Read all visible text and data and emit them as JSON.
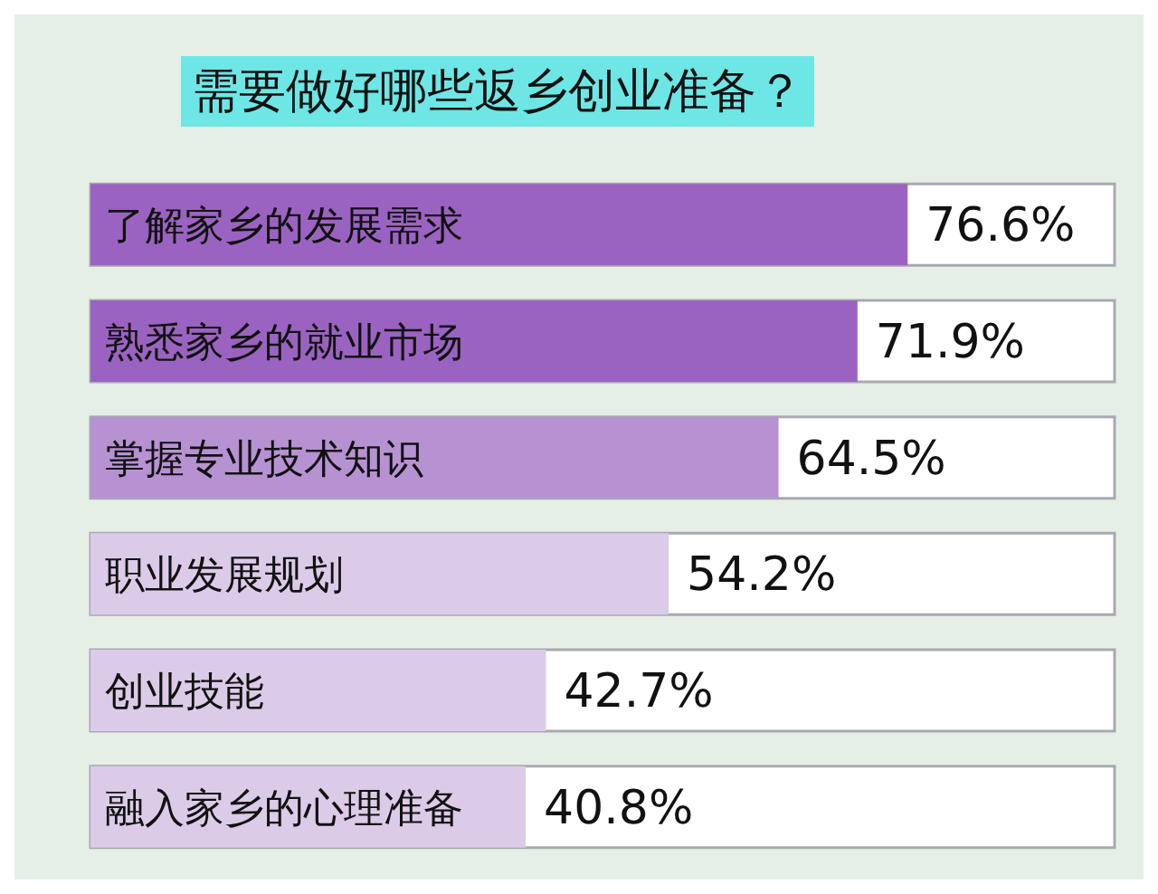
{
  "chart_data": {
    "type": "bar",
    "orientation": "horizontal",
    "title": "需要做好哪些返乡创业准备？",
    "categories": [
      "了解家乡的发展需求",
      "熟悉家乡的就业市场",
      "掌握专业技术知识",
      "职业发展规划",
      "创业技能",
      "融入家乡的心理准备"
    ],
    "values": [
      76.6,
      71.9,
      64.5,
      54.2,
      42.7,
      40.8
    ],
    "colors": [
      "#9b63c1",
      "#9b63c1",
      "#b792d3",
      "#dccbe8",
      "#dccbe8",
      "#dccbe8"
    ],
    "value_labels": [
      "76.6%",
      "71.9%",
      "64.5%",
      "54.2%",
      "42.7%",
      "40.8%"
    ],
    "xlim": [
      0,
      96
    ]
  }
}
